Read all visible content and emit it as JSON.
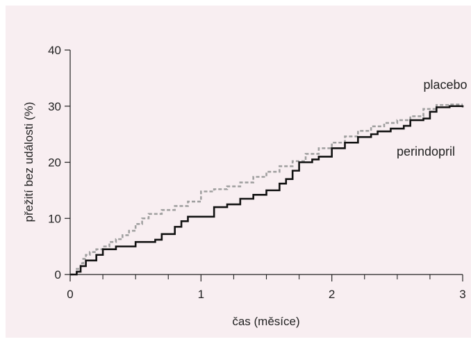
{
  "chart_data": {
    "type": "line",
    "xlabel": "čas (měsíce)",
    "ylabel": "přežití bez události (%)",
    "xlim": [
      0,
      3
    ],
    "ylim": [
      0,
      40
    ],
    "xticks": [
      0,
      1,
      2,
      3
    ],
    "yticks": [
      0,
      10,
      20,
      30,
      40
    ],
    "x_minor_ticks": [
      0.25,
      0.5,
      0.75,
      1.25,
      1.5,
      1.75,
      2.25,
      2.5,
      2.75
    ],
    "grid": false,
    "series": [
      {
        "name": "placebo",
        "style": "dashed",
        "color": "#a0a0a0",
        "points": [
          [
            0,
            0
          ],
          [
            0.05,
            1
          ],
          [
            0.08,
            2
          ],
          [
            0.1,
            2.8
          ],
          [
            0.12,
            3.5
          ],
          [
            0.15,
            4
          ],
          [
            0.2,
            4.5
          ],
          [
            0.25,
            5
          ],
          [
            0.3,
            5.8
          ],
          [
            0.35,
            6.3
          ],
          [
            0.4,
            7
          ],
          [
            0.45,
            7.8
          ],
          [
            0.5,
            9
          ],
          [
            0.55,
            10
          ],
          [
            0.6,
            10.8
          ],
          [
            0.7,
            11.5
          ],
          [
            0.8,
            12.2
          ],
          [
            0.9,
            13
          ],
          [
            1.0,
            14.8
          ],
          [
            1.1,
            15.2
          ],
          [
            1.2,
            15.7
          ],
          [
            1.3,
            16.4
          ],
          [
            1.4,
            17.4
          ],
          [
            1.5,
            18.3
          ],
          [
            1.6,
            19.3
          ],
          [
            1.7,
            20.2
          ],
          [
            1.8,
            21.5
          ],
          [
            1.9,
            22.5
          ],
          [
            2.0,
            23.5
          ],
          [
            2.1,
            24.6
          ],
          [
            2.2,
            25.6
          ],
          [
            2.3,
            26.4
          ],
          [
            2.4,
            27.0
          ],
          [
            2.5,
            27.5
          ],
          [
            2.6,
            28.2
          ],
          [
            2.7,
            29.5
          ],
          [
            2.8,
            30.2
          ],
          [
            2.9,
            30.3
          ],
          [
            3.0,
            30.3
          ]
        ]
      },
      {
        "name": "perindopril",
        "style": "solid",
        "color": "#111111",
        "points": [
          [
            0,
            0
          ],
          [
            0.05,
            0.5
          ],
          [
            0.08,
            1.5
          ],
          [
            0.12,
            2.5
          ],
          [
            0.2,
            3.5
          ],
          [
            0.25,
            4.5
          ],
          [
            0.35,
            5
          ],
          [
            0.5,
            5.8
          ],
          [
            0.65,
            6.2
          ],
          [
            0.7,
            7.2
          ],
          [
            0.8,
            8.5
          ],
          [
            0.85,
            9.5
          ],
          [
            0.9,
            10.3
          ],
          [
            1.0,
            10.3
          ],
          [
            1.05,
            10.3
          ],
          [
            1.1,
            12
          ],
          [
            1.2,
            12.5
          ],
          [
            1.3,
            13.5
          ],
          [
            1.4,
            14.2
          ],
          [
            1.5,
            15.0
          ],
          [
            1.6,
            16.2
          ],
          [
            1.65,
            17
          ],
          [
            1.7,
            18.5
          ],
          [
            1.75,
            20
          ],
          [
            1.85,
            20.5
          ],
          [
            1.9,
            21
          ],
          [
            2.0,
            22.5
          ],
          [
            2.1,
            23.5
          ],
          [
            2.2,
            24.5
          ],
          [
            2.3,
            25.0
          ],
          [
            2.35,
            25.5
          ],
          [
            2.45,
            26
          ],
          [
            2.55,
            26.5
          ],
          [
            2.6,
            27.5
          ],
          [
            2.7,
            27.8
          ],
          [
            2.75,
            29
          ],
          [
            2.8,
            29.8
          ],
          [
            2.9,
            30.0
          ],
          [
            3.0,
            29.8
          ]
        ]
      }
    ]
  }
}
